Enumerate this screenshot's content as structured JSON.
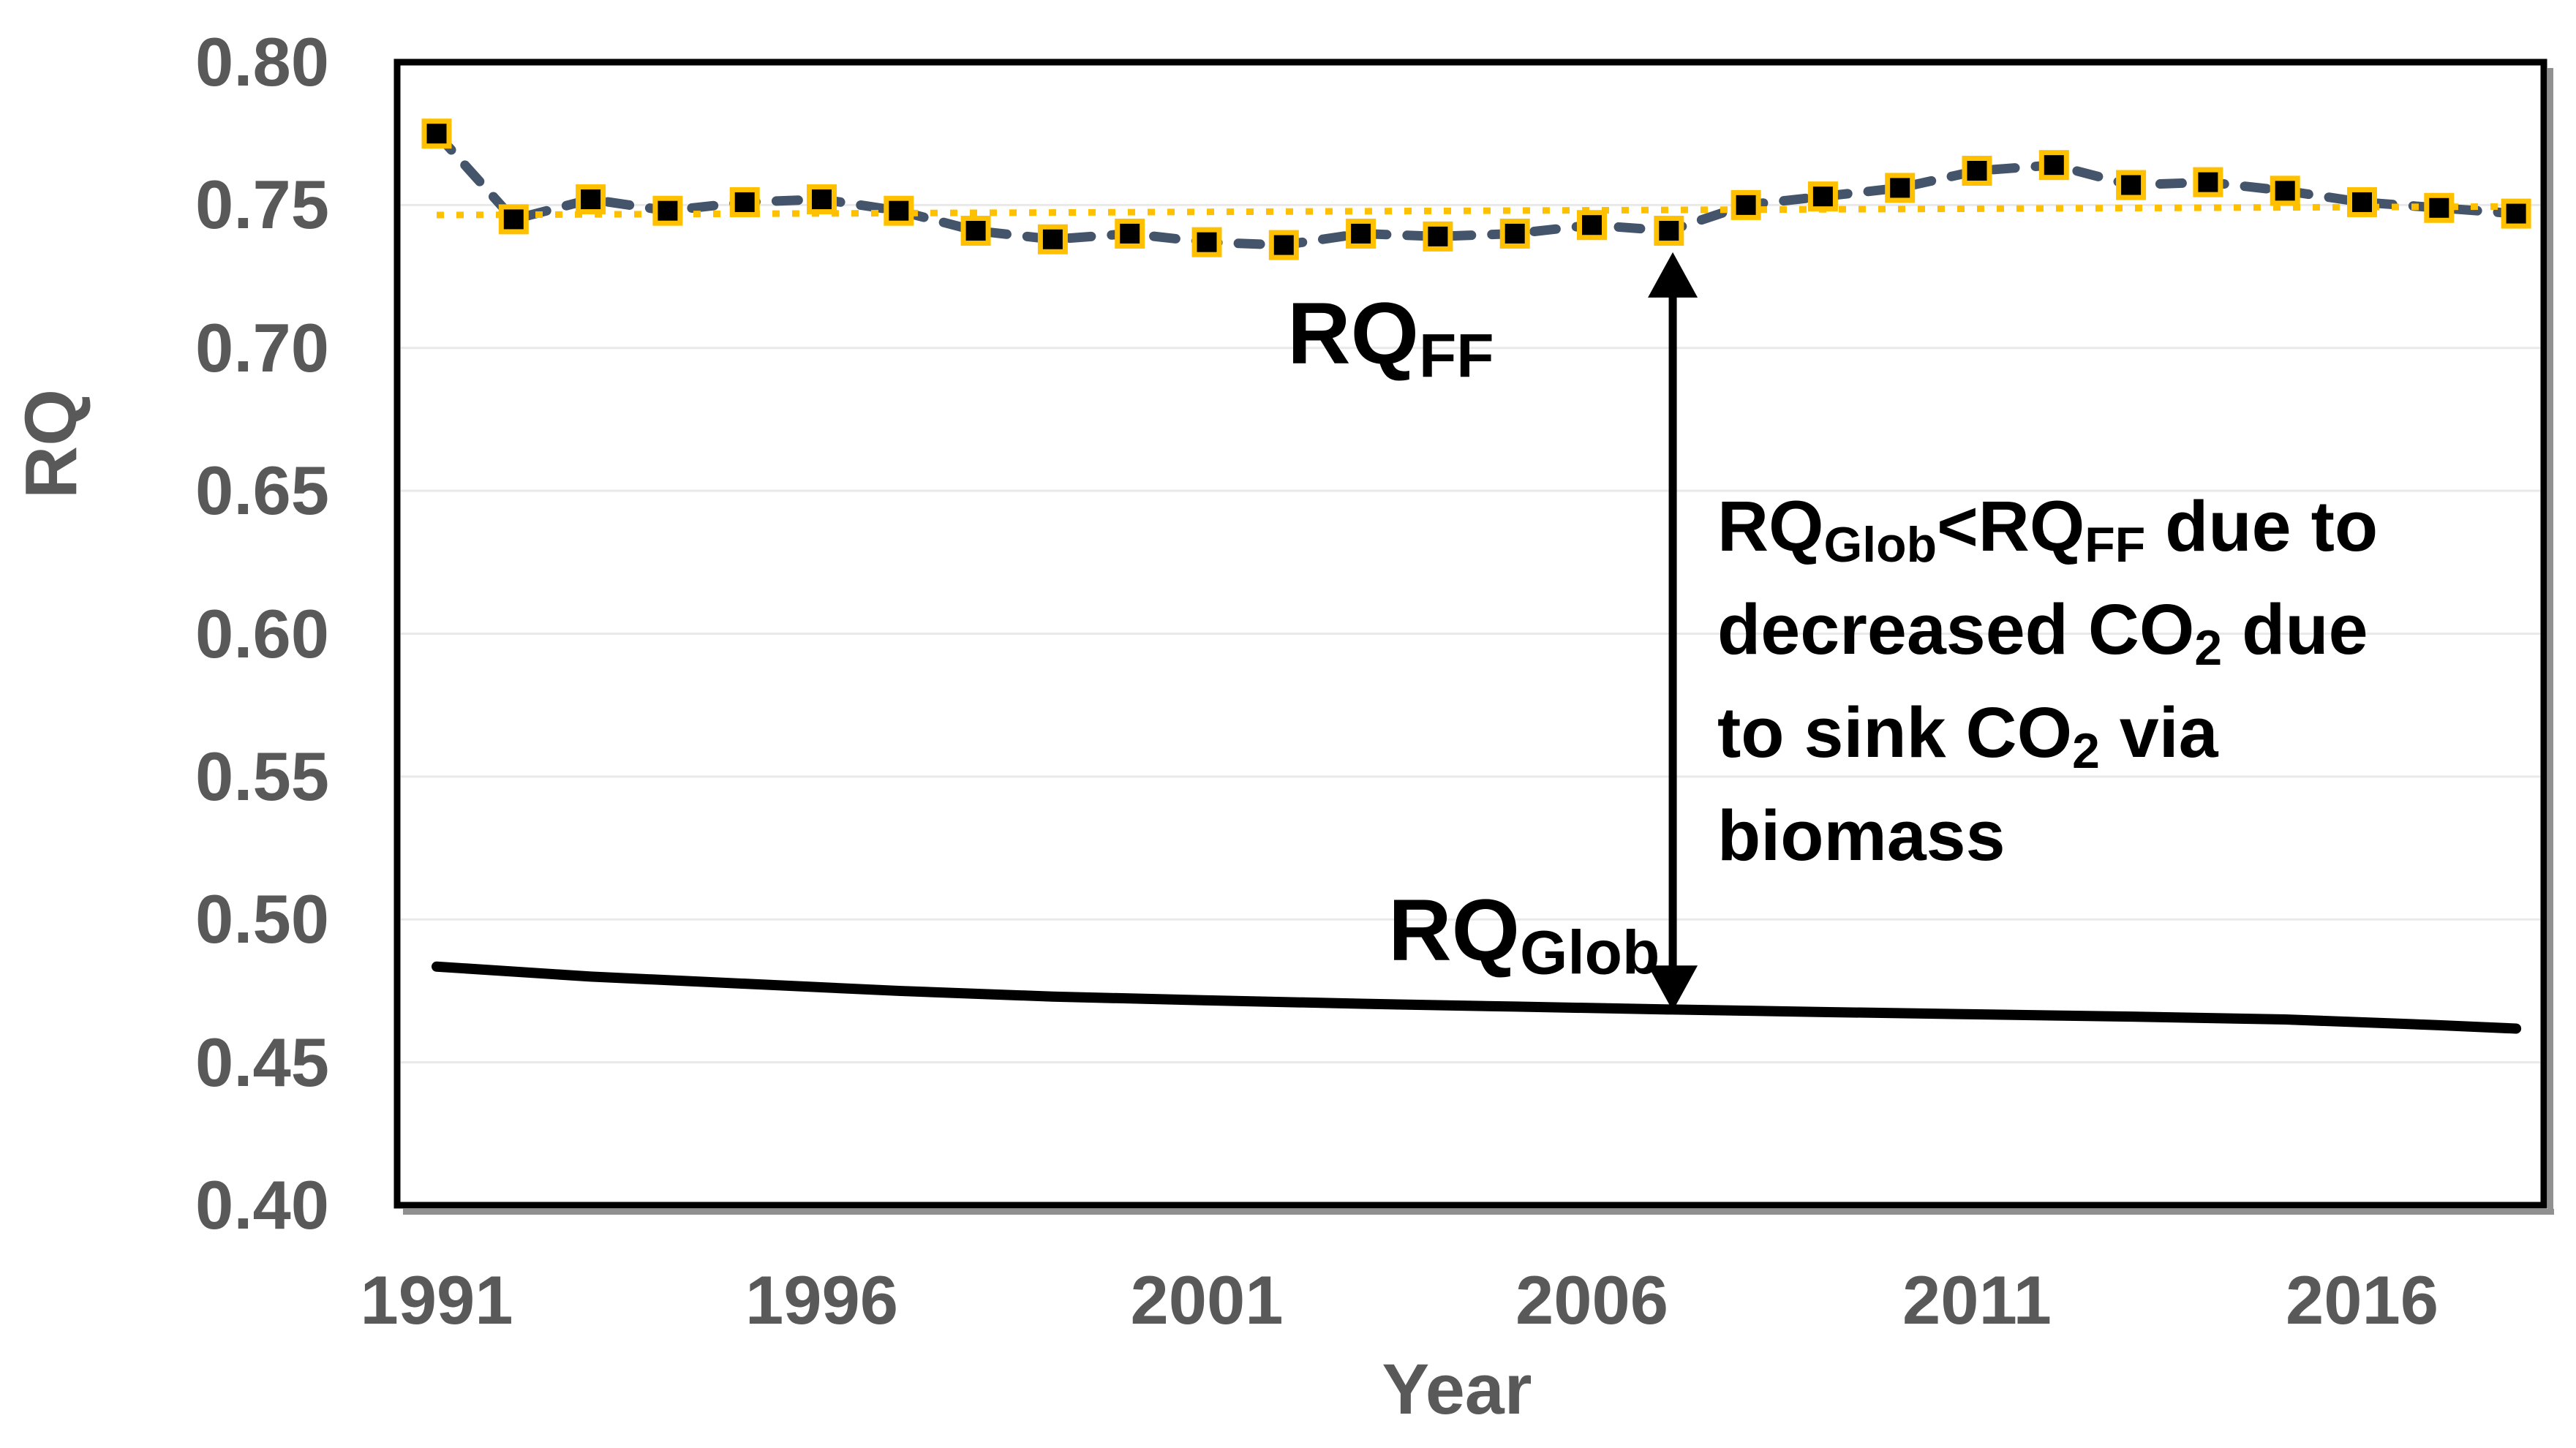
{
  "colors": {
    "axis_text": "#595959",
    "annotation_text": "#000000",
    "plot_border": "#000000",
    "border_shadow": "#909090",
    "gridline": "#E9E9E9",
    "rqff_line": "#44546A",
    "marker_fill": "#000000",
    "marker_stroke": "#FFC000",
    "trend_line": "#FFC000",
    "rqglob_line": "#000000",
    "arrow": "#000000"
  },
  "y_axis": {
    "title": "RQ",
    "ticks": [
      "0.80",
      "0.75",
      "0.70",
      "0.65",
      "0.60",
      "0.55",
      "0.50",
      "0.45",
      "0.40"
    ],
    "tick_values": [
      0.8,
      0.75,
      0.7,
      0.65,
      0.6,
      0.55,
      0.5,
      0.45,
      0.4
    ]
  },
  "x_axis": {
    "title": "Year",
    "ticks": [
      "1991",
      "1996",
      "2001",
      "2006",
      "2011",
      "2016"
    ],
    "tick_values": [
      1991,
      1996,
      2001,
      2006,
      2011,
      2016
    ]
  },
  "labels": {
    "rq_ff": [
      [
        "RQ",
        false
      ],
      [
        "FF",
        true
      ]
    ],
    "rq_glob": [
      [
        "RQ",
        false
      ],
      [
        "Glob",
        true
      ]
    ],
    "annotation_lines": [
      [
        [
          "RQ",
          false
        ],
        [
          "Glob",
          true
        ],
        [
          "<RQ",
          false
        ],
        [
          "FF",
          true
        ],
        [
          " due to",
          false
        ]
      ],
      [
        [
          "decreased CO",
          false
        ],
        [
          "2",
          true
        ],
        [
          " due",
          false
        ]
      ],
      [
        [
          "to sink CO",
          false
        ],
        [
          "2",
          true
        ],
        [
          " via",
          false
        ]
      ],
      [
        [
          "biomass",
          false
        ]
      ]
    ]
  },
  "chart_data": {
    "type": "line",
    "title": "",
    "xlabel": "Year",
    "ylabel": "RQ",
    "xlim": [
      1990.5,
      2018.9
    ],
    "ylim": [
      0.4,
      0.8
    ],
    "ytick_step": 0.05,
    "grid": "horizontal-light",
    "legend": "none",
    "series": [
      {
        "name": "RQ_FF",
        "style": "dashed-with-square-markers",
        "x": [
          1991,
          1992,
          1993,
          1994,
          1995,
          1996,
          1997,
          1998,
          1999,
          2000,
          2001,
          2002,
          2003,
          2004,
          2005,
          2006,
          2007,
          2008,
          2009,
          2010,
          2011,
          2012,
          2013,
          2014,
          2015,
          2016,
          2017,
          2018
        ],
        "values": [
          0.775,
          0.745,
          0.752,
          0.748,
          0.751,
          0.752,
          0.748,
          0.741,
          0.738,
          0.74,
          0.737,
          0.736,
          0.74,
          0.739,
          0.74,
          0.743,
          0.741,
          0.75,
          0.753,
          0.756,
          0.762,
          0.764,
          0.757,
          0.758,
          0.755,
          0.751,
          0.749,
          0.747
        ]
      },
      {
        "name": "RQ_FF linear trend",
        "style": "dotted",
        "x": [
          1991,
          2018
        ],
        "values": [
          0.7465,
          0.7495
        ]
      },
      {
        "name": "RQ_Glob",
        "style": "solid",
        "x": [
          1991,
          1993,
          1995,
          1997,
          1999,
          2001,
          2003,
          2005,
          2007,
          2009,
          2011,
          2013,
          2015,
          2017,
          2018
        ],
        "values": [
          0.4835,
          0.48,
          0.4775,
          0.475,
          0.473,
          0.4717,
          0.4705,
          0.4695,
          0.4685,
          0.4676,
          0.4668,
          0.466,
          0.465,
          0.463,
          0.4618
        ]
      }
    ],
    "annotation_arrow": {
      "x": 2007.05,
      "value_top": 0.7335,
      "value_bottom": 0.468,
      "double_headed": true
    }
  }
}
